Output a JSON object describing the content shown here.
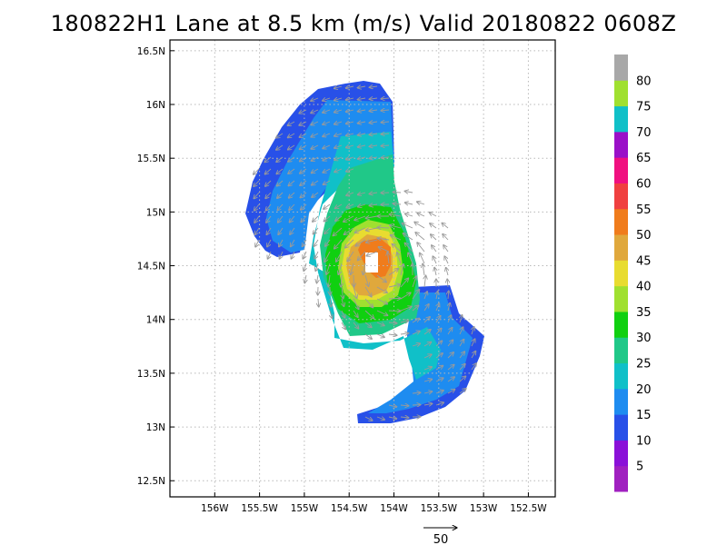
{
  "title": "180822H1 Lane at 8.5 km (m/s) Valid 20180822 0608Z",
  "chart_data": {
    "type": "heatmap",
    "title": "180822H1 Lane at 8.5 km (m/s) Valid 20180822 0608Z",
    "xlim": [
      -156.5,
      -152.2
    ],
    "ylim": [
      12.35,
      16.6
    ],
    "x_ticks": [
      {
        "value": -156.0,
        "label": "156W"
      },
      {
        "value": -155.5,
        "label": "155.5W"
      },
      {
        "value": -155.0,
        "label": "155W"
      },
      {
        "value": -154.5,
        "label": "154.5W"
      },
      {
        "value": -154.0,
        "label": "154W"
      },
      {
        "value": -153.5,
        "label": "153.5W"
      },
      {
        "value": -153.0,
        "label": "153W"
      },
      {
        "value": -152.5,
        "label": "152.5W"
      }
    ],
    "y_ticks": [
      {
        "value": 12.5,
        "label": "12.5N"
      },
      {
        "value": 13.0,
        "label": "13N"
      },
      {
        "value": 13.5,
        "label": "13.5N"
      },
      {
        "value": 14.0,
        "label": "14N"
      },
      {
        "value": 14.5,
        "label": "14.5N"
      },
      {
        "value": 15.0,
        "label": "15N"
      },
      {
        "value": 15.5,
        "label": "15.5N"
      },
      {
        "value": 16.0,
        "label": "16N"
      },
      {
        "value": 16.5,
        "label": "16.5N"
      }
    ],
    "grid": true,
    "colorbar": {
      "bins": [
        {
          "min": 0,
          "max": 5,
          "color": "#a020c0"
        },
        {
          "min": 5,
          "max": 10,
          "color": "#8a10d8"
        },
        {
          "min": 10,
          "max": 15,
          "color": "#2850e8"
        },
        {
          "min": 15,
          "max": 20,
          "color": "#1e8cf0"
        },
        {
          "min": 20,
          "max": 25,
          "color": "#10c0c8"
        },
        {
          "min": 25,
          "max": 30,
          "color": "#20c888"
        },
        {
          "min": 30,
          "max": 35,
          "color": "#10d010"
        },
        {
          "min": 35,
          "max": 40,
          "color": "#a0e030"
        },
        {
          "min": 40,
          "max": 45,
          "color": "#e8dc30"
        },
        {
          "min": 45,
          "max": 50,
          "color": "#e0a83c"
        },
        {
          "min": 50,
          "max": 55,
          "color": "#f07c1c"
        },
        {
          "min": 55,
          "max": 60,
          "color": "#f04040"
        },
        {
          "min": 60,
          "max": 65,
          "color": "#f01080"
        },
        {
          "min": 65,
          "max": 70,
          "color": "#9a10c8"
        },
        {
          "min": 70,
          "max": 75,
          "color": "#10c0c8"
        },
        {
          "min": 75,
          "max": 80,
          "color": "#a0e030"
        },
        {
          "min": 80,
          "max": 85,
          "color": "#a8a8a8"
        }
      ],
      "labels": [
        "5",
        "10",
        "15",
        "20",
        "25",
        "30",
        "35",
        "40",
        "45",
        "50",
        "55",
        "60",
        "65",
        "70",
        "75",
        "80"
      ]
    },
    "vector_reference": {
      "magnitude": 50,
      "label": "50"
    },
    "storm_center": {
      "lon": -154.15,
      "lat": 14.55
    }
  }
}
